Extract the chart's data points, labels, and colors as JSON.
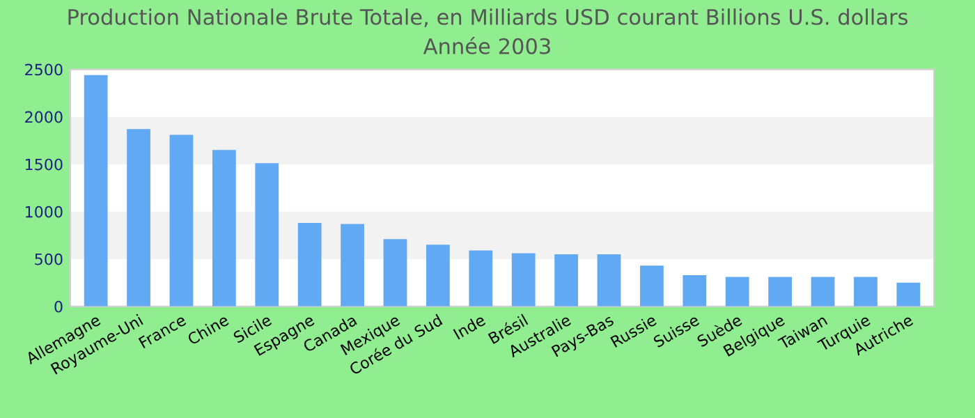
{
  "chart_data": {
    "type": "bar",
    "title": "Production Nationale Brute Totale, en Milliards USD courant Billions U.S. dollars",
    "subtitle": "Année 2003",
    "categories": [
      "Allemagne",
      "Royaume-Uni",
      "France",
      "Chine",
      "Sicile",
      "Espagne",
      "Canada",
      "Mexique",
      "Corée du Sud",
      "Inde",
      "Brésil",
      "Australie",
      "Pays-Bas",
      "Russie",
      "Suisse",
      "Suède",
      "Belgique",
      "Taiwan",
      "Turquie",
      "Autriche"
    ],
    "values": [
      2440,
      1870,
      1810,
      1650,
      1510,
      880,
      870,
      710,
      650,
      590,
      560,
      550,
      550,
      430,
      330,
      310,
      310,
      310,
      310,
      250
    ],
    "color": "#62a9f4",
    "ylim": [
      0,
      2500
    ],
    "yticks": [
      0,
      500,
      1000,
      1500,
      2000,
      2500
    ],
    "bands": [
      {
        "axis": "y",
        "from": 500,
        "to": 1000,
        "color": "#f2f2f2"
      },
      {
        "axis": "y",
        "from": 1500,
        "to": 2000,
        "color": "#f2f2f2"
      }
    ]
  }
}
